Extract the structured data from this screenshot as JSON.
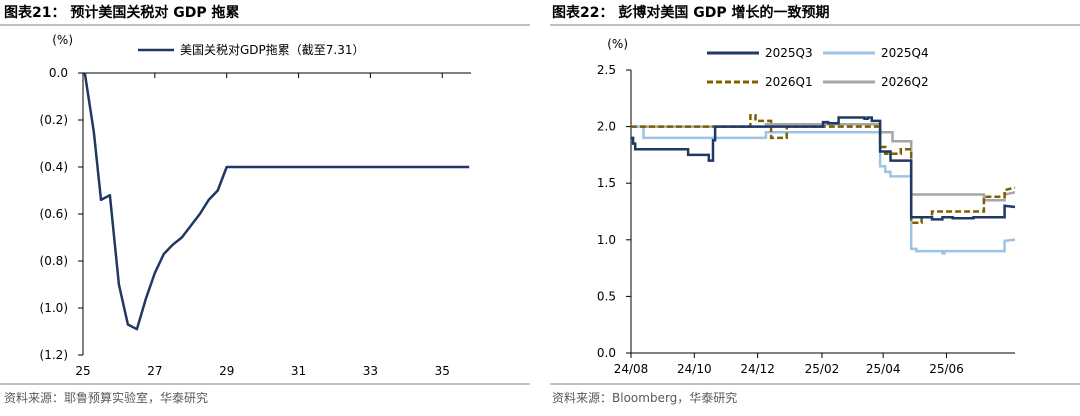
{
  "left": {
    "header": "图表21： 预计美国关税对 GDP 拖累",
    "source": "资料来源：耶鲁预算实验室，华泰研究",
    "chart_data": {
      "type": "line",
      "unit": "(%)",
      "xlim": [
        25,
        35.8
      ],
      "ylim": [
        -1.2,
        0
      ],
      "x_ticks": [
        25,
        27,
        29,
        31,
        33,
        35
      ],
      "y_ticks": [
        0,
        -0.2,
        -0.4,
        -0.6,
        -0.8,
        -1.0,
        -1.2
      ],
      "y_tick_labels": [
        "0.0",
        "(0.2)",
        "(0.4)",
        "(0.6)",
        "(0.8)",
        "(1.0)",
        "(1.2)"
      ],
      "grid": false,
      "legend_position": "top-center",
      "series": [
        {
          "name": "美国关税对GDP拖累（截至7.31）",
          "color": "#1f3864",
          "x": [
            25.05,
            25.3,
            25.5,
            25.75,
            26.0,
            26.25,
            26.5,
            26.75,
            27.0,
            27.25,
            27.5,
            27.75,
            28.0,
            28.25,
            28.5,
            28.75,
            29.0,
            35.75
          ],
          "y": [
            0.0,
            -0.25,
            -0.54,
            -0.52,
            -0.9,
            -1.07,
            -1.09,
            -0.96,
            -0.85,
            -0.77,
            -0.73,
            -0.7,
            -0.65,
            -0.6,
            -0.54,
            -0.5,
            -0.4,
            -0.4
          ]
        }
      ]
    }
  },
  "right": {
    "header": "图表22： 彭博对美国 GDP 增长的一致预期",
    "source": "资料来源：Bloomberg，华泰研究",
    "chart_data": {
      "type": "line",
      "unit": "(%)",
      "xlim": [
        0,
        370
      ],
      "ylim": [
        0,
        2.5
      ],
      "x_ticks": [
        0,
        61,
        122,
        184,
        243,
        304
      ],
      "x_tick_labels": [
        "24/08",
        "24/10",
        "24/12",
        "25/02",
        "25/04",
        "25/06"
      ],
      "y_ticks": [
        0,
        0.5,
        1.0,
        1.5,
        2.0,
        2.5
      ],
      "y_tick_labels": [
        "0.0",
        "0.5",
        "1.0",
        "1.5",
        "2.0",
        "2.5"
      ],
      "grid": false,
      "legend_position": "top-center",
      "series": [
        {
          "name": "2025Q3",
          "color": "#1f3864",
          "dash": "solid",
          "x": [
            0,
            2,
            2,
            4,
            4,
            55,
            55,
            75,
            75,
            79,
            79,
            81,
            81,
            185,
            185,
            190,
            190,
            200,
            200,
            225,
            225,
            228,
            228,
            232,
            232,
            240,
            240,
            250,
            250,
            270,
            270,
            290,
            290,
            300,
            300,
            310,
            310,
            330,
            330,
            360,
            360,
            370
          ],
          "y": [
            1.9,
            1.9,
            1.85,
            1.85,
            1.8,
            1.8,
            1.75,
            1.75,
            1.7,
            1.7,
            1.88,
            1.88,
            2.0,
            2.0,
            2.04,
            2.04,
            2.03,
            2.03,
            2.08,
            2.08,
            2.07,
            2.07,
            2.08,
            2.08,
            2.05,
            2.05,
            1.78,
            1.78,
            1.7,
            1.7,
            1.2,
            1.2,
            1.18,
            1.18,
            1.2,
            1.2,
            1.19,
            1.19,
            1.2,
            1.2,
            1.3,
            1.29
          ]
        },
        {
          "name": "2025Q4",
          "color": "#9dc3e6",
          "dash": "solid",
          "x": [
            0,
            12,
            12,
            130,
            130,
            240,
            240,
            245,
            245,
            250,
            250,
            270,
            270,
            275,
            275,
            300,
            300,
            302,
            302,
            360,
            360,
            370
          ],
          "y": [
            2.0,
            2.0,
            1.9,
            1.9,
            1.95,
            1.95,
            1.65,
            1.65,
            1.6,
            1.6,
            1.56,
            1.56,
            0.92,
            0.92,
            0.9,
            0.9,
            0.88,
            0.88,
            0.9,
            0.9,
            0.99,
            1.0
          ]
        },
        {
          "name": "2026Q1",
          "color": "#7f6000",
          "dash": "dashed",
          "x": [
            0,
            115,
            115,
            120,
            120,
            135,
            135,
            150,
            150,
            240,
            240,
            245,
            245,
            260,
            260,
            270,
            270,
            280,
            280,
            290,
            290,
            340,
            340,
            360,
            360,
            370
          ],
          "y": [
            2.0,
            2.0,
            2.1,
            2.1,
            2.05,
            2.05,
            1.9,
            1.9,
            2.0,
            2.0,
            1.82,
            1.82,
            1.76,
            1.76,
            1.8,
            1.8,
            1.15,
            1.15,
            1.2,
            1.2,
            1.25,
            1.25,
            1.38,
            1.38,
            1.44,
            1.46
          ]
        },
        {
          "name": "2026Q2",
          "color": "#a6a6a6",
          "dash": "solid",
          "x": [
            0,
            130,
            130,
            240,
            240,
            252,
            252,
            270,
            270,
            340,
            340,
            360,
            360,
            370
          ],
          "y": [
            2.0,
            2.0,
            2.02,
            2.02,
            1.95,
            1.95,
            1.87,
            1.87,
            1.4,
            1.4,
            1.35,
            1.35,
            1.4,
            1.42
          ]
        }
      ]
    }
  }
}
